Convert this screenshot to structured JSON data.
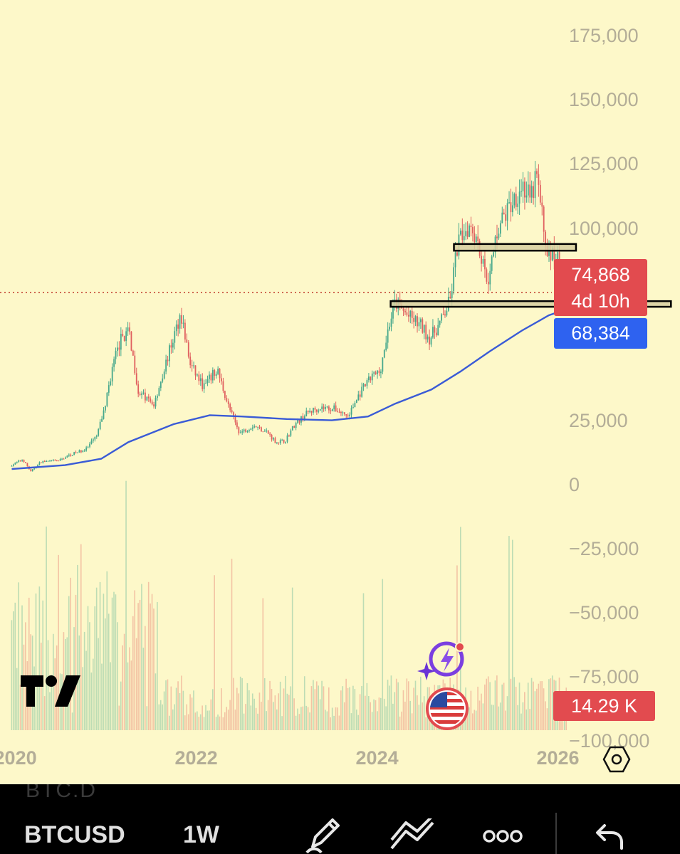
{
  "chart_data": {
    "type": "candlestick",
    "symbol": "BTCUSD",
    "interval": "1W",
    "x_ticks": [
      "2020",
      "2022",
      "2024",
      "2026"
    ],
    "y_ticks": [
      175000,
      150000,
      125000,
      100000,
      25000,
      0,
      -25000,
      -50000,
      -75000,
      -100000
    ],
    "y_tick_labels": [
      "175,000",
      "150,000",
      "125,000",
      "100,000",
      "25,000",
      "0",
      "−25,000",
      "−50,000",
      "−75,000",
      "−100,000"
    ],
    "ylim": [
      -117000,
      189000
    ],
    "xlim": [
      2019.83,
      2027.35
    ],
    "price_path": [
      [
        2019.96,
        7200
      ],
      [
        2020.1,
        9800
      ],
      [
        2020.19,
        5000
      ],
      [
        2020.3,
        8800
      ],
      [
        2020.5,
        9300
      ],
      [
        2020.62,
        11500
      ],
      [
        2020.8,
        13700
      ],
      [
        2020.92,
        19000
      ],
      [
        2021.0,
        29000
      ],
      [
        2021.1,
        47000
      ],
      [
        2021.2,
        58000
      ],
      [
        2021.28,
        59000
      ],
      [
        2021.38,
        36000
      ],
      [
        2021.55,
        31000
      ],
      [
        2021.68,
        47000
      ],
      [
        2021.85,
        67000
      ],
      [
        2021.95,
        47000
      ],
      [
        2022.1,
        38000
      ],
      [
        2022.25,
        45000
      ],
      [
        2022.38,
        30000
      ],
      [
        2022.5,
        20000
      ],
      [
        2022.65,
        23000
      ],
      [
        2022.8,
        20500
      ],
      [
        2022.9,
        16500
      ],
      [
        2023.0,
        17000
      ],
      [
        2023.1,
        23000
      ],
      [
        2023.25,
        28000
      ],
      [
        2023.38,
        30000
      ],
      [
        2023.55,
        29500
      ],
      [
        2023.7,
        26500
      ],
      [
        2023.82,
        35000
      ],
      [
        2023.96,
        42000
      ],
      [
        2024.05,
        44000
      ],
      [
        2024.15,
        62000
      ],
      [
        2024.22,
        71000
      ],
      [
        2024.35,
        66000
      ],
      [
        2024.5,
        62000
      ],
      [
        2024.6,
        57000
      ],
      [
        2024.72,
        63000
      ],
      [
        2024.83,
        72000
      ],
      [
        2024.9,
        92000
      ],
      [
        2024.96,
        98000
      ],
      [
        2025.05,
        102000
      ],
      [
        2025.12,
        97000
      ],
      [
        2025.2,
        84000
      ],
      [
        2025.26,
        80000
      ],
      [
        2025.35,
        100000
      ],
      [
        2025.45,
        106000
      ],
      [
        2025.55,
        113000
      ],
      [
        2025.63,
        117000
      ],
      [
        2025.72,
        110000
      ],
      [
        2025.78,
        121000
      ],
      [
        2025.83,
        108000
      ],
      [
        2025.88,
        95000
      ],
      [
        2025.93,
        88000
      ],
      [
        2026.0,
        91000
      ],
      [
        2026.06,
        78000
      ],
      [
        2026.1,
        74868
      ]
    ],
    "ma_path": [
      [
        2019.96,
        6000
      ],
      [
        2020.55,
        7500
      ],
      [
        2020.95,
        10000
      ],
      [
        2021.25,
        16500
      ],
      [
        2021.75,
        23500
      ],
      [
        2022.15,
        27000
      ],
      [
        2022.5,
        26500
      ],
      [
        2023.0,
        25500
      ],
      [
        2023.5,
        25000
      ],
      [
        2023.9,
        26500
      ],
      [
        2024.2,
        31500
      ],
      [
        2024.6,
        37000
      ],
      [
        2024.92,
        44000
      ],
      [
        2025.25,
        52000
      ],
      [
        2025.6,
        60000
      ],
      [
        2025.9,
        66000
      ],
      [
        2026.1,
        68384
      ]
    ],
    "zones": [
      {
        "x": [
          2024.85,
          2026.2
        ],
        "y": [
          91200,
          93800
        ]
      },
      {
        "x": [
          2024.15,
          2027.25
        ],
        "y": [
          69300,
          71500
        ]
      }
    ],
    "current_price": 74868,
    "current_price_label": "74,868",
    "countdown_label": "4d 10h",
    "ma_value": 68384,
    "ma_label": "68,384",
    "volume_label": "14.29 K",
    "colors": {
      "background": "#fdf8c9",
      "up": "#46a88c",
      "down": "#e0605f",
      "ma_line": "#3a5bd6",
      "price_tag": "#e24b4f",
      "ma_tag": "#2e62f0",
      "zone_fill": "#d7cfa1",
      "tick_text": "#b3ad97"
    }
  },
  "bottom_bar": {
    "sub_symbol": "BTC.D",
    "symbol": "BTCUSD",
    "interval": "1W",
    "icons": [
      "pencil-icon",
      "multi-line-icon",
      "more-dots-icon",
      "undo-icon"
    ]
  },
  "overlay_icons": [
    "tradingview-logo",
    "spark-icon",
    "us-flag-icon",
    "settings-hexagon-icon"
  ]
}
